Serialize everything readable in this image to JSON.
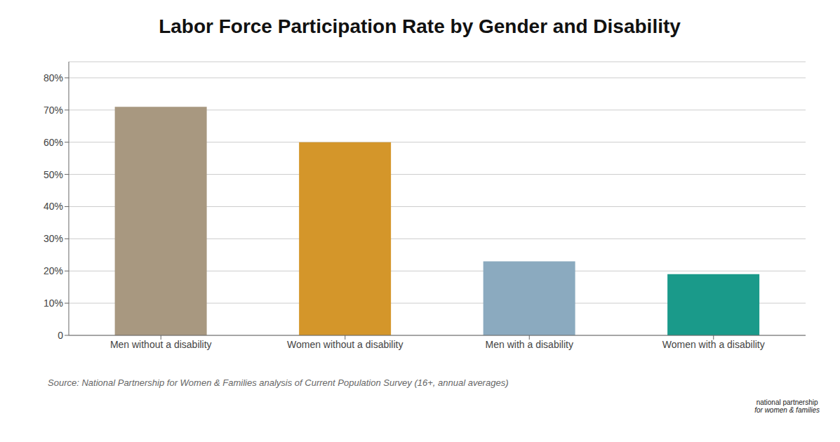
{
  "chart_data": {
    "type": "bar",
    "title": "Labor Force Participation Rate by Gender and Disability",
    "categories": [
      "Men without a disability",
      "Women without a disability",
      "Men with a disability",
      "Women with a disability"
    ],
    "values": [
      71,
      60,
      23,
      19
    ],
    "colors": [
      "#a89880",
      "#d4962a",
      "#8baabf",
      "#1a9a8a"
    ],
    "ylim": [
      0,
      85
    ],
    "yticks": [
      0,
      {
        "value": 10,
        "label": "10%"
      },
      {
        "value": 20,
        "label": "20%"
      },
      {
        "value": 30,
        "label": "30%"
      },
      {
        "value": 40,
        "label": "40%"
      },
      {
        "value": 50,
        "label": "50%"
      },
      {
        "value": 60,
        "label": "60%"
      },
      {
        "value": 70,
        "label": "70%"
      },
      {
        "value": 80,
        "label": "80%"
      }
    ],
    "grid": true,
    "annotations": [
      "Source: National Partnership for Women & Families analysis of Current Population Survey (16+, annual averages)",
      "national partnership",
      "for women & families"
    ]
  }
}
